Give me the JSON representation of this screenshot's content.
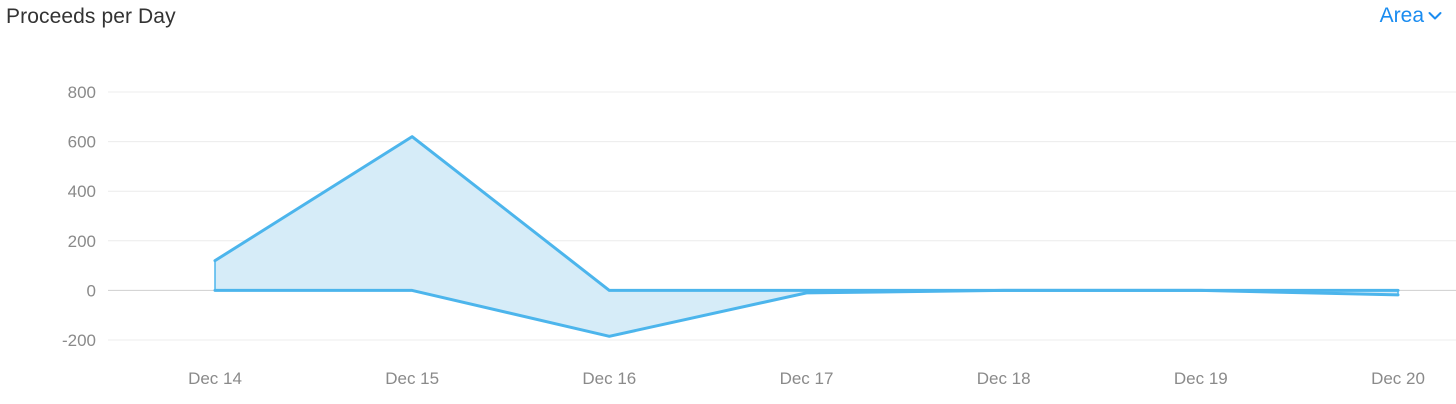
{
  "header": {
    "title": "Proceeds per Day",
    "chart_type_label": "Area"
  },
  "colors": {
    "accent": "#1a8cf0",
    "series_line": "#4cb5ec",
    "series_fill": "#d6ecf8",
    "grid": "#ececec",
    "zero_line": "#cfcfcf",
    "tick_text": "#8a8a8a"
  },
  "icons": {
    "dropdown": "chevron-down-icon"
  },
  "chart_data": {
    "type": "area",
    "title": "Proceeds per Day",
    "xlabel": "",
    "ylabel": "",
    "categories": [
      "Dec 14",
      "Dec 15",
      "Dec 16",
      "Dec 17",
      "Dec 18",
      "Dec 19",
      "Dec 20"
    ],
    "series": [
      {
        "values": [
          120,
          620,
          0,
          0,
          0,
          0,
          0
        ]
      },
      {
        "values": [
          0,
          0,
          -185,
          -10,
          0,
          0,
          -18
        ]
      }
    ],
    "y_ticks": [
      800,
      600,
      400,
      200,
      0,
      -200
    ],
    "ylim": [
      -200,
      800
    ],
    "grid": true,
    "legend": "none"
  }
}
